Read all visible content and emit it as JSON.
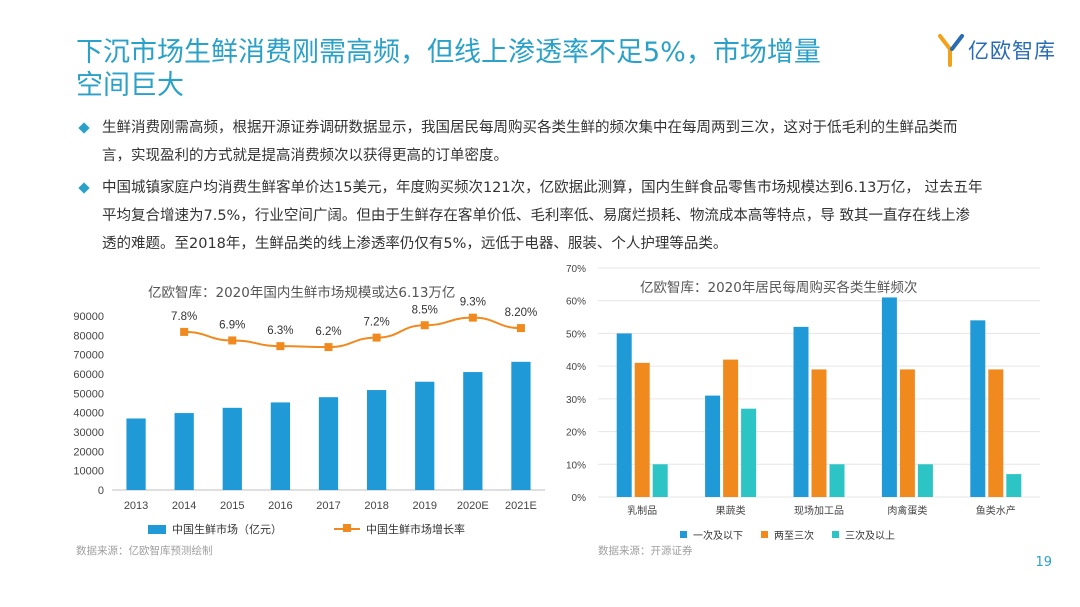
{
  "header": {
    "title": "下沉市场生鲜消费刚需高频，但线上渗透率不足5%，市场增量空间巨大",
    "logo_text": "亿欧智库"
  },
  "bullets": [
    "生鲜消费刚需高频，根据开源证券调研数据显示，我国居民每周购买各类生鲜的频次集中在每周两到三次，这对于低毛利的生鲜品类而言，实现盈利的方式就是提高消费频次以获得更高的订单密度。",
    "中国城镇家庭户均消费生鲜客单价达15美元，年度购买频次121次，亿欧据此测算，国内生鲜食品零售市场规模达到6.13万亿， 过去五年平均复合增速为7.5%，行业空间广阔。但由于生鲜存在客单价低、毛利率低、易腐烂损耗、物流成本高等特点，导 致其一直存在线上渗透的难题。至2018年，生鲜品类的线上渗透率仍仅有5%，远低于电器、服装、个人护理等品类。"
  ],
  "chart_data": [
    {
      "type": "bar",
      "title": "亿欧智库：2020年国内生鲜市场规模或达6.13万亿",
      "categories": [
        "2013",
        "2014",
        "2015",
        "2016",
        "2017",
        "2018",
        "2019",
        "2020E",
        "2021E"
      ],
      "series": [
        {
          "name": "中国生鲜市场（亿元）",
          "type": "bar",
          "values": [
            37000,
            39800,
            42500,
            45300,
            48000,
            51700,
            56000,
            61000,
            66300
          ]
        },
        {
          "name": "中国生鲜市场增长率",
          "type": "line",
          "values": [
            7.8,
            6.9,
            6.3,
            6.2,
            7.2,
            8.5,
            9.3,
            8.2
          ],
          "x": [
            "2014",
            "2015",
            "2016",
            "2017",
            "2018",
            "2019",
            "2020E",
            "2021E"
          ],
          "labels": [
            "7.8%",
            "6.9%",
            "6.3%",
            "6.2%",
            "7.2%",
            "8.5%",
            "9.3%",
            "8.20%"
          ]
        }
      ],
      "yticks": [
        "0",
        "10000",
        "20000",
        "30000",
        "40000",
        "50000",
        "60000",
        "70000",
        "80000",
        "90000"
      ],
      "ylim": [
        0,
        90000
      ],
      "legend": "bottom",
      "colors": {
        "bar": "#1f9ad6",
        "line": "#f08a1e"
      },
      "source": "数据来源：亿欧智库预测绘制"
    },
    {
      "type": "bar",
      "title": "亿欧智库：2020年居民每周购买各类生鲜频次",
      "categories": [
        "乳制品",
        "果蔬类",
        "现场加工品",
        "肉禽蛋类",
        "鱼类水产"
      ],
      "series": [
        {
          "name": "一次及以下",
          "values": [
            50,
            31,
            52,
            61,
            54
          ]
        },
        {
          "name": "两至三次",
          "values": [
            41,
            42,
            39,
            39,
            39
          ]
        },
        {
          "name": "三次及以上",
          "values": [
            10,
            27,
            10,
            10,
            7
          ]
        }
      ],
      "yticks": [
        "0%",
        "10%",
        "20%",
        "30%",
        "40%",
        "50%",
        "60%",
        "70%"
      ],
      "ylim": [
        0,
        70
      ],
      "legend": "bottom",
      "colors": {
        "s1": "#1f9ad6",
        "s2": "#f08a1e",
        "s3": "#2cc4c4"
      },
      "source": "数据来源：开源证券"
    }
  ],
  "page": {
    "number": "19"
  }
}
